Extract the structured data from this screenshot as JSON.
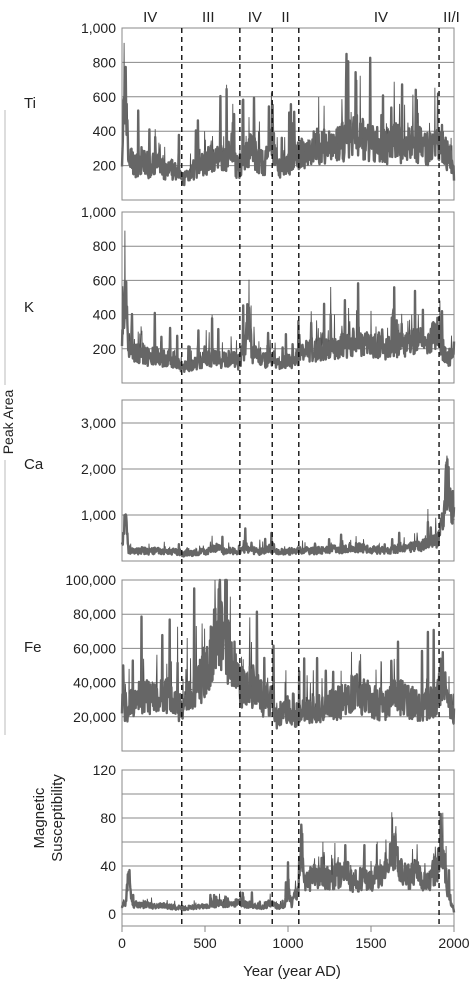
{
  "chart_data": {
    "type": "line",
    "x_axis": {
      "label": "Year (year AD)",
      "range": [
        0,
        2000
      ],
      "ticks": [
        0,
        500,
        1000,
        1500,
        2000
      ],
      "tick_labels": [
        "0",
        "500",
        "1000",
        "1500",
        "2000"
      ]
    },
    "shared_ylabel": "Peak Area",
    "zones": [
      {
        "label": "IV",
        "x": 170
      },
      {
        "label": "III",
        "x": 520
      },
      {
        "label": "IV",
        "x": 800
      },
      {
        "label": "II",
        "x": 985
      },
      {
        "label": "IV",
        "x": 1560
      },
      {
        "label": "II/I",
        "x": 1985
      }
    ],
    "boundaries": [
      360,
      710,
      905,
      1065,
      1910
    ],
    "grid": true,
    "series_color": "#666666",
    "panels": [
      {
        "name": "Ti",
        "ylim": [
          0,
          1000
        ],
        "ticks": [
          200,
          400,
          600,
          800,
          1000
        ],
        "tick_labels": [
          "200",
          "400",
          "600",
          "800",
          "1,000"
        ],
        "points": [
          [
            0,
            300
          ],
          [
            20,
            650
          ],
          [
            40,
            250
          ],
          [
            80,
            200
          ],
          [
            120,
            230
          ],
          [
            160,
            180
          ],
          [
            200,
            220
          ],
          [
            240,
            190
          ],
          [
            280,
            170
          ],
          [
            320,
            180
          ],
          [
            360,
            120
          ],
          [
            400,
            150
          ],
          [
            450,
            190
          ],
          [
            500,
            220
          ],
          [
            550,
            240
          ],
          [
            580,
            230
          ],
          [
            620,
            260
          ],
          [
            660,
            250
          ],
          [
            700,
            180
          ],
          [
            740,
            260
          ],
          [
            780,
            300
          ],
          [
            820,
            230
          ],
          [
            860,
            210
          ],
          [
            900,
            360
          ],
          [
            940,
            180
          ],
          [
            980,
            200
          ],
          [
            1020,
            220
          ],
          [
            1060,
            250
          ],
          [
            1100,
            280
          ],
          [
            1150,
            300
          ],
          [
            1200,
            320
          ],
          [
            1250,
            300
          ],
          [
            1300,
            330
          ],
          [
            1350,
            350
          ],
          [
            1400,
            380
          ],
          [
            1450,
            360
          ],
          [
            1500,
            330
          ],
          [
            1550,
            320
          ],
          [
            1600,
            310
          ],
          [
            1650,
            340
          ],
          [
            1700,
            300
          ],
          [
            1750,
            320
          ],
          [
            1800,
            330
          ],
          [
            1850,
            290
          ],
          [
            1900,
            320
          ],
          [
            1950,
            280
          ],
          [
            1980,
            220
          ],
          [
            2000,
            160
          ]
        ]
      },
      {
        "name": "K",
        "ylim": [
          0,
          1000
        ],
        "ticks": [
          200,
          400,
          600,
          800,
          1000
        ],
        "tick_labels": [
          "200",
          "400",
          "600",
          "800",
          "1,000"
        ],
        "points": [
          [
            0,
            250
          ],
          [
            20,
            580
          ],
          [
            40,
            200
          ],
          [
            80,
            170
          ],
          [
            120,
            180
          ],
          [
            160,
            150
          ],
          [
            200,
            160
          ],
          [
            240,
            140
          ],
          [
            280,
            150
          ],
          [
            320,
            130
          ],
          [
            360,
            90
          ],
          [
            400,
            100
          ],
          [
            450,
            120
          ],
          [
            500,
            140
          ],
          [
            550,
            150
          ],
          [
            600,
            130
          ],
          [
            650,
            150
          ],
          [
            700,
            120
          ],
          [
            740,
            200
          ],
          [
            760,
            420
          ],
          [
            780,
            180
          ],
          [
            820,
            150
          ],
          [
            860,
            130
          ],
          [
            900,
            160
          ],
          [
            940,
            110
          ],
          [
            980,
            120
          ],
          [
            1020,
            130
          ],
          [
            1060,
            160
          ],
          [
            1100,
            180
          ],
          [
            1150,
            190
          ],
          [
            1200,
            200
          ],
          [
            1250,
            190
          ],
          [
            1300,
            210
          ],
          [
            1350,
            220
          ],
          [
            1400,
            240
          ],
          [
            1450,
            230
          ],
          [
            1500,
            210
          ],
          [
            1550,
            220
          ],
          [
            1600,
            200
          ],
          [
            1650,
            230
          ],
          [
            1700,
            220
          ],
          [
            1750,
            240
          ],
          [
            1800,
            260
          ],
          [
            1850,
            240
          ],
          [
            1900,
            290
          ],
          [
            1950,
            150
          ],
          [
            1980,
            150
          ],
          [
            2000,
            200
          ]
        ]
      },
      {
        "name": "Ca",
        "ylim": [
          0,
          3500
        ],
        "ticks": [
          1000,
          2000,
          3000
        ],
        "tick_labels": [
          "1,000",
          "2,000",
          "3,000"
        ],
        "points": [
          [
            0,
            400
          ],
          [
            20,
            900
          ],
          [
            40,
            250
          ],
          [
            80,
            200
          ],
          [
            120,
            230
          ],
          [
            160,
            200
          ],
          [
            200,
            220
          ],
          [
            240,
            200
          ],
          [
            280,
            180
          ],
          [
            320,
            210
          ],
          [
            360,
            150
          ],
          [
            400,
            160
          ],
          [
            450,
            180
          ],
          [
            500,
            200
          ],
          [
            550,
            260
          ],
          [
            580,
            300
          ],
          [
            620,
            200
          ],
          [
            660,
            220
          ],
          [
            700,
            180
          ],
          [
            740,
            280
          ],
          [
            780,
            240
          ],
          [
            820,
            200
          ],
          [
            860,
            230
          ],
          [
            900,
            260
          ],
          [
            940,
            190
          ],
          [
            980,
            200
          ],
          [
            1020,
            210
          ],
          [
            1060,
            230
          ],
          [
            1100,
            240
          ],
          [
            1150,
            220
          ],
          [
            1200,
            230
          ],
          [
            1250,
            260
          ],
          [
            1300,
            240
          ],
          [
            1350,
            250
          ],
          [
            1400,
            300
          ],
          [
            1450,
            280
          ],
          [
            1500,
            260
          ],
          [
            1550,
            240
          ],
          [
            1600,
            230
          ],
          [
            1650,
            260
          ],
          [
            1700,
            280
          ],
          [
            1750,
            300
          ],
          [
            1800,
            330
          ],
          [
            1850,
            380
          ],
          [
            1900,
            450
          ],
          [
            1930,
            800
          ],
          [
            1960,
            1800
          ],
          [
            1980,
            1200
          ],
          [
            2000,
            900
          ]
        ]
      },
      {
        "name": "Fe",
        "ylim": [
          0,
          100000
        ],
        "ticks": [
          20000,
          40000,
          60000,
          80000,
          100000
        ],
        "tick_labels": [
          "20,000",
          "40,000",
          "60,000",
          "80,000",
          "100,000"
        ],
        "points": [
          [
            0,
            28000
          ],
          [
            40,
            25000
          ],
          [
            80,
            30000
          ],
          [
            120,
            32000
          ],
          [
            160,
            30000
          ],
          [
            200,
            33000
          ],
          [
            240,
            31000
          ],
          [
            280,
            35000
          ],
          [
            320,
            30000
          ],
          [
            360,
            22000
          ],
          [
            390,
            30000
          ],
          [
            420,
            36000
          ],
          [
            460,
            40000
          ],
          [
            500,
            46000
          ],
          [
            540,
            58000
          ],
          [
            580,
            75000
          ],
          [
            620,
            62000
          ],
          [
            660,
            55000
          ],
          [
            700,
            38000
          ],
          [
            740,
            35000
          ],
          [
            780,
            38000
          ],
          [
            820,
            33000
          ],
          [
            860,
            30000
          ],
          [
            900,
            28000
          ],
          [
            930,
            18000
          ],
          [
            960,
            22000
          ],
          [
            1000,
            24000
          ],
          [
            1040,
            20000
          ],
          [
            1080,
            23000
          ],
          [
            1120,
            22000
          ],
          [
            1160,
            25000
          ],
          [
            1200,
            24000
          ],
          [
            1250,
            26000
          ],
          [
            1300,
            28000
          ],
          [
            1350,
            30000
          ],
          [
            1400,
            36000
          ],
          [
            1450,
            32000
          ],
          [
            1500,
            30000
          ],
          [
            1550,
            27000
          ],
          [
            1600,
            28000
          ],
          [
            1650,
            33000
          ],
          [
            1700,
            30000
          ],
          [
            1750,
            28000
          ],
          [
            1800,
            26000
          ],
          [
            1850,
            28000
          ],
          [
            1900,
            32000
          ],
          [
            1930,
            45000
          ],
          [
            1960,
            30000
          ],
          [
            2000,
            20000
          ]
        ]
      },
      {
        "name": "Magnetic Susceptibility",
        "name_lines": [
          "Magnetic",
          "Susceptibility"
        ],
        "ylim": [
          -10,
          120
        ],
        "ticks": [
          0,
          40,
          80,
          120
        ],
        "tick_labels": [
          "0",
          "40",
          "80",
          "120"
        ],
        "grid_values": [
          0,
          20,
          40,
          60,
          80,
          100,
          120
        ],
        "points": [
          [
            0,
            5
          ],
          [
            20,
            10
          ],
          [
            40,
            30
          ],
          [
            60,
            8
          ],
          [
            100,
            7
          ],
          [
            150,
            8
          ],
          [
            200,
            6
          ],
          [
            250,
            7
          ],
          [
            300,
            6
          ],
          [
            350,
            5
          ],
          [
            400,
            5
          ],
          [
            450,
            6
          ],
          [
            500,
            7
          ],
          [
            550,
            8
          ],
          [
            600,
            9
          ],
          [
            650,
            8
          ],
          [
            700,
            10
          ],
          [
            750,
            8
          ],
          [
            800,
            7
          ],
          [
            850,
            6
          ],
          [
            900,
            10
          ],
          [
            940,
            6
          ],
          [
            980,
            7
          ],
          [
            1000,
            20
          ],
          [
            1020,
            8
          ],
          [
            1060,
            20
          ],
          [
            1080,
            60
          ],
          [
            1100,
            25
          ],
          [
            1150,
            30
          ],
          [
            1200,
            35
          ],
          [
            1250,
            28
          ],
          [
            1300,
            32
          ],
          [
            1350,
            36
          ],
          [
            1400,
            25
          ],
          [
            1450,
            30
          ],
          [
            1500,
            28
          ],
          [
            1550,
            32
          ],
          [
            1600,
            45
          ],
          [
            1640,
            55
          ],
          [
            1680,
            40
          ],
          [
            1720,
            30
          ],
          [
            1760,
            35
          ],
          [
            1800,
            30
          ],
          [
            1850,
            28
          ],
          [
            1900,
            40
          ],
          [
            1930,
            55
          ],
          [
            1960,
            20
          ],
          [
            2000,
            2
          ]
        ]
      }
    ]
  }
}
